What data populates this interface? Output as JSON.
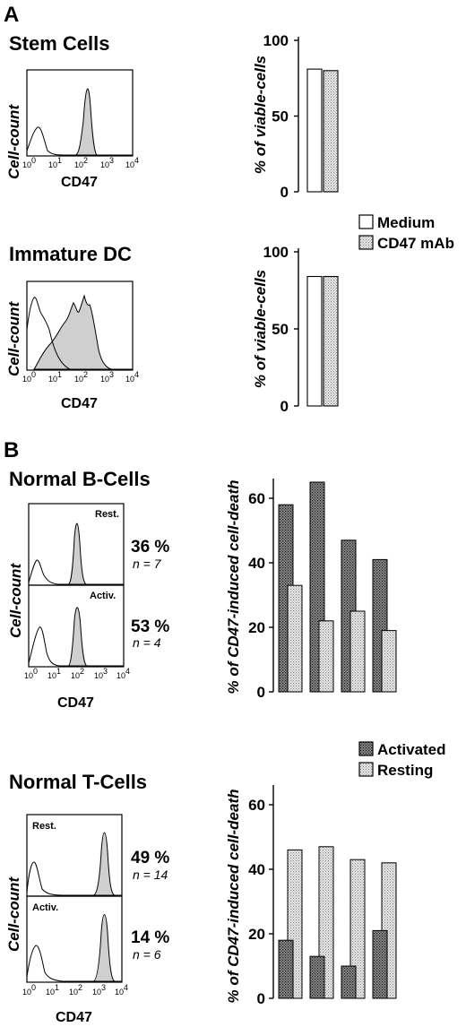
{
  "panels": {
    "a": "A",
    "b": "B"
  },
  "patterns": {
    "medium_color": "#ffffff",
    "cd47_color": "#d4d4d4",
    "activated_color": "#6e6e6e",
    "resting_color": "#d2d2d2",
    "histogram_fill": "#cfcfcf"
  },
  "legends": {
    "a": [
      {
        "label": "Medium"
      },
      {
        "label": "CD47 mAb"
      }
    ],
    "b": [
      {
        "label": "Activated"
      },
      {
        "label": "Resting"
      }
    ]
  },
  "histograms": [
    {
      "title": "Stem Cells",
      "ylabel": "Cell-count",
      "xlabel": "CD47",
      "subplots": [
        {
          "label": ""
        }
      ]
    },
    {
      "title": "Immature DC",
      "ylabel": "Cell-count",
      "xlabel": "CD47",
      "subplots": [
        {
          "label": ""
        }
      ]
    },
    {
      "title": "Normal B-Cells",
      "ylabel": "Cell-count",
      "xlabel": "CD47",
      "subplots": [
        {
          "label": "Rest.",
          "percent": "36 %",
          "n": "n = 7"
        },
        {
          "label": "Activ.",
          "percent": "53 %",
          "n": "n = 4"
        }
      ]
    },
    {
      "title": "Normal T-Cells",
      "ylabel": "Cell-count",
      "xlabel": "CD47",
      "subplots": [
        {
          "label": "Rest.",
          "percent": "49 %",
          "n": "n = 14"
        },
        {
          "label": "Activ.",
          "percent": "14 %",
          "n": "n = 6"
        }
      ]
    }
  ],
  "histogram_ticks": [
    "10",
    "0",
    "10",
    "1",
    "10",
    "2",
    "10",
    "3",
    "10",
    "4"
  ],
  "chart_data": [
    {
      "type": "bar",
      "ylabel": "% of viable-cells",
      "ylim": [
        0,
        100
      ],
      "yticks": [
        "0",
        "50",
        "100"
      ],
      "series": [
        {
          "name": "Medium",
          "values": [
            81
          ]
        },
        {
          "name": "CD47 mAb",
          "values": [
            80
          ]
        }
      ]
    },
    {
      "type": "bar",
      "ylabel": "% of viable-cells",
      "ylim": [
        0,
        100
      ],
      "yticks": [
        "0",
        "50",
        "100"
      ],
      "series": [
        {
          "name": "Medium",
          "values": [
            84
          ]
        },
        {
          "name": "CD47 mAb",
          "values": [
            84
          ]
        }
      ]
    },
    {
      "type": "bar",
      "ylabel": "% of CD47-induced cell-death",
      "ylim": [
        0,
        65
      ],
      "yticks": [
        "0",
        "20",
        "40",
        "60"
      ],
      "series": [
        {
          "name": "Activated",
          "values": [
            58,
            65,
            47,
            41
          ]
        },
        {
          "name": "Resting",
          "values": [
            33,
            22,
            25,
            19
          ]
        }
      ]
    },
    {
      "type": "bar",
      "ylabel": "% of CD47-induced cell-death",
      "ylim": [
        0,
        65
      ],
      "yticks": [
        "0",
        "20",
        "40",
        "60"
      ],
      "series": [
        {
          "name": "Activated",
          "values": [
            18,
            13,
            10,
            21
          ]
        },
        {
          "name": "Resting",
          "values": [
            46,
            47,
            43,
            42
          ]
        }
      ]
    }
  ]
}
